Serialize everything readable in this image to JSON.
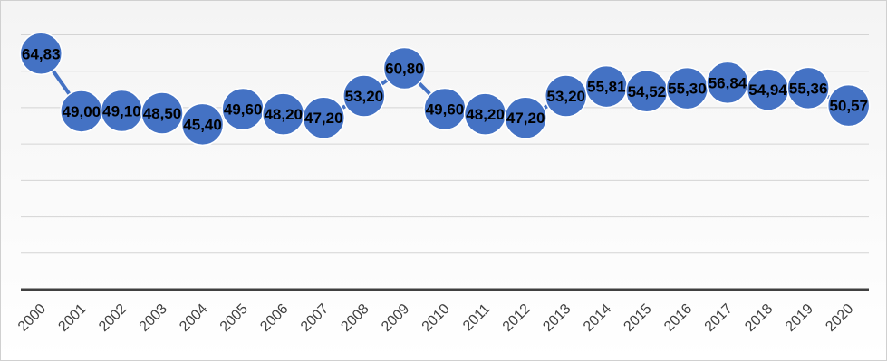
{
  "chart_data": {
    "type": "line",
    "title": "",
    "xlabel": "",
    "ylabel": "",
    "categories": [
      "2000",
      "2001",
      "2002",
      "2003",
      "2004",
      "2005",
      "2006",
      "2007",
      "2008",
      "2009",
      "2010",
      "2011",
      "2012",
      "2013",
      "2014",
      "2015",
      "2016",
      "2017",
      "2018",
      "2019",
      "2020"
    ],
    "series": [
      {
        "values": [
          64.83,
          49.0,
          49.1,
          48.5,
          45.4,
          49.6,
          48.2,
          47.2,
          53.2,
          60.8,
          49.6,
          48.2,
          47.2,
          53.2,
          55.81,
          54.52,
          55.3,
          56.84,
          54.94,
          55.36,
          50.57
        ],
        "labels": [
          "64,83",
          "49,00",
          "49,10",
          "48,50",
          "45,40",
          "49,60",
          "48,20",
          "47,20",
          "53,20",
          "60,80",
          "49,60",
          "48,20",
          "47,20",
          "53,20",
          "55,81",
          "54,52",
          "55,30",
          "56,84",
          "54,94",
          "55,36",
          "50,57"
        ],
        "color": "#4472C4"
      }
    ],
    "ylim": [
      0,
      70
    ],
    "grid": true,
    "legend": "none",
    "colors": {
      "series": "#4472C4",
      "axis": "#404040",
      "grid": "#d4d4d4"
    }
  }
}
